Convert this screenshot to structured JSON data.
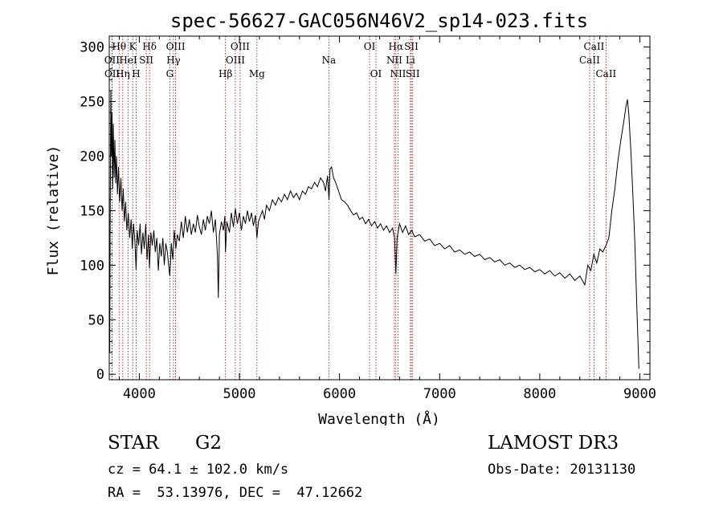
{
  "chart_data": {
    "type": "line",
    "title": "spec-56627-GAC056N46V2_sp14-023.fits",
    "xlabel": "Wavelength (Å)",
    "ylabel": "Flux (relative)",
    "xlim": [
      3700,
      9100
    ],
    "ylim": [
      -5,
      310
    ],
    "xticks": [
      4000,
      5000,
      6000,
      7000,
      8000,
      9000
    ],
    "yticks": [
      0,
      50,
      100,
      150,
      200,
      250,
      300
    ],
    "grid": false,
    "spectral_lines": [
      {
        "label": "Hθ",
        "x": 3798,
        "row": 0
      },
      {
        "label": "OII",
        "x": 3727,
        "row": 1
      },
      {
        "label": "OII",
        "x": 3729,
        "row": 2
      },
      {
        "label": "K",
        "x": 3934,
        "row": 0
      },
      {
        "label": "HeI",
        "x": 3889,
        "row": 1
      },
      {
        "label": "Hη",
        "x": 3835,
        "row": 2
      },
      {
        "label": "SII",
        "x": 4070,
        "row": 1
      },
      {
        "label": "H",
        "x": 3969,
        "row": 2
      },
      {
        "label": "Hδ",
        "x": 4102,
        "row": 0
      },
      {
        "label": "OIII",
        "x": 4363,
        "row": 0
      },
      {
        "label": "Hγ",
        "x": 4341,
        "row": 1
      },
      {
        "label": "G",
        "x": 4305,
        "row": 2
      },
      {
        "label": "OIII",
        "x": 5007,
        "row": 0
      },
      {
        "label": "OIII",
        "x": 4959,
        "row": 1
      },
      {
        "label": "Hβ",
        "x": 4861,
        "row": 2
      },
      {
        "label": "Mg",
        "x": 5175,
        "row": 2
      },
      {
        "label": "Na",
        "x": 5893,
        "row": 1
      },
      {
        "label": "OI",
        "x": 6300,
        "row": 0
      },
      {
        "label": "OI",
        "x": 6364,
        "row": 2
      },
      {
        "label": "Hα",
        "x": 6563,
        "row": 0
      },
      {
        "label": "NII",
        "x": 6548,
        "row": 1
      },
      {
        "label": "NII",
        "x": 6584,
        "row": 2
      },
      {
        "label": "SII",
        "x": 6717,
        "row": 0
      },
      {
        "label": "Li",
        "x": 6708,
        "row": 1
      },
      {
        "label": "SII",
        "x": 6731,
        "row": 2
      },
      {
        "label": "CaII",
        "x": 8542,
        "row": 0
      },
      {
        "label": "CaII",
        "x": 8498,
        "row": 1
      },
      {
        "label": "CaII",
        "x": 8662,
        "row": 2
      }
    ],
    "series": [
      {
        "points": [
          [
            3700,
            75
          ],
          [
            3705,
            20
          ],
          [
            3710,
            150
          ],
          [
            3716,
            260
          ],
          [
            3722,
            200
          ],
          [
            3728,
            240
          ],
          [
            3734,
            170
          ],
          [
            3740,
            230
          ],
          [
            3748,
            180
          ],
          [
            3756,
            215
          ],
          [
            3764,
            175
          ],
          [
            3772,
            200
          ],
          [
            3782,
            165
          ],
          [
            3792,
            190
          ],
          [
            3804,
            158
          ],
          [
            3816,
            180
          ],
          [
            3828,
            150
          ],
          [
            3840,
            170
          ],
          [
            3852,
            140
          ],
          [
            3864,
            158
          ],
          [
            3876,
            132
          ],
          [
            3890,
            148
          ],
          [
            3904,
            125
          ],
          [
            3918,
            142
          ],
          [
            3930,
            115
          ],
          [
            3942,
            138
          ],
          [
            3956,
            122
          ],
          [
            3968,
            96
          ],
          [
            3980,
            132
          ],
          [
            3994,
            118
          ],
          [
            4008,
            138
          ],
          [
            4022,
            110
          ],
          [
            4036,
            130
          ],
          [
            4050,
            115
          ],
          [
            4064,
            138
          ],
          [
            4078,
            105
          ],
          [
            4092,
            128
          ],
          [
            4102,
            97
          ],
          [
            4116,
            130
          ],
          [
            4130,
            118
          ],
          [
            4145,
            132
          ],
          [
            4160,
            112
          ],
          [
            4175,
            125
          ],
          [
            4190,
            95
          ],
          [
            4205,
            120
          ],
          [
            4220,
            108
          ],
          [
            4235,
            125
          ],
          [
            4250,
            100
          ],
          [
            4265,
            120
          ],
          [
            4280,
            112
          ],
          [
            4295,
            98
          ],
          [
            4305,
            90
          ],
          [
            4320,
            120
          ],
          [
            4335,
            105
          ],
          [
            4350,
            132
          ],
          [
            4365,
            115
          ],
          [
            4380,
            128
          ],
          [
            4400,
            122
          ],
          [
            4420,
            140
          ],
          [
            4440,
            125
          ],
          [
            4460,
            145
          ],
          [
            4480,
            130
          ],
          [
            4500,
            142
          ],
          [
            4520,
            128
          ],
          [
            4540,
            138
          ],
          [
            4560,
            130
          ],
          [
            4580,
            146
          ],
          [
            4600,
            135
          ],
          [
            4620,
            128
          ],
          [
            4640,
            142
          ],
          [
            4660,
            132
          ],
          [
            4680,
            145
          ],
          [
            4700,
            138
          ],
          [
            4720,
            150
          ],
          [
            4740,
            130
          ],
          [
            4760,
            142
          ],
          [
            4780,
            110
          ],
          [
            4790,
            70
          ],
          [
            4800,
            128
          ],
          [
            4820,
            140
          ],
          [
            4840,
            132
          ],
          [
            4855,
            145
          ],
          [
            4861,
            112
          ],
          [
            4875,
            140
          ],
          [
            4900,
            130
          ],
          [
            4920,
            148
          ],
          [
            4940,
            135
          ],
          [
            4960,
            152
          ],
          [
            4980,
            138
          ],
          [
            5000,
            148
          ],
          [
            5020,
            132
          ],
          [
            5040,
            145
          ],
          [
            5060,
            138
          ],
          [
            5080,
            150
          ],
          [
            5100,
            140
          ],
          [
            5120,
            148
          ],
          [
            5140,
            136
          ],
          [
            5160,
            146
          ],
          [
            5175,
            125
          ],
          [
            5190,
            140
          ],
          [
            5210,
            145
          ],
          [
            5230,
            150
          ],
          [
            5250,
            142
          ],
          [
            5270,
            155
          ],
          [
            5300,
            150
          ],
          [
            5330,
            160
          ],
          [
            5360,
            155
          ],
          [
            5390,
            162
          ],
          [
            5420,
            158
          ],
          [
            5450,
            165
          ],
          [
            5480,
            160
          ],
          [
            5510,
            168
          ],
          [
            5540,
            162
          ],
          [
            5570,
            166
          ],
          [
            5600,
            160
          ],
          [
            5630,
            168
          ],
          [
            5660,
            165
          ],
          [
            5690,
            172
          ],
          [
            5720,
            170
          ],
          [
            5750,
            176
          ],
          [
            5780,
            172
          ],
          [
            5810,
            180
          ],
          [
            5840,
            176
          ],
          [
            5860,
            168
          ],
          [
            5880,
            182
          ],
          [
            5895,
            160
          ],
          [
            5905,
            188
          ],
          [
            5920,
            190
          ],
          [
            5940,
            180
          ],
          [
            5960,
            176
          ],
          [
            5990,
            168
          ],
          [
            6020,
            160
          ],
          [
            6050,
            158
          ],
          [
            6080,
            155
          ],
          [
            6110,
            150
          ],
          [
            6140,
            146
          ],
          [
            6170,
            148
          ],
          [
            6200,
            142
          ],
          [
            6230,
            144
          ],
          [
            6260,
            138
          ],
          [
            6290,
            142
          ],
          [
            6320,
            136
          ],
          [
            6350,
            140
          ],
          [
            6380,
            134
          ],
          [
            6410,
            138
          ],
          [
            6440,
            132
          ],
          [
            6470,
            136
          ],
          [
            6500,
            130
          ],
          [
            6530,
            134
          ],
          [
            6550,
            125
          ],
          [
            6563,
            92
          ],
          [
            6575,
            125
          ],
          [
            6600,
            138
          ],
          [
            6630,
            130
          ],
          [
            6660,
            136
          ],
          [
            6690,
            128
          ],
          [
            6720,
            132
          ],
          [
            6750,
            126
          ],
          [
            6800,
            128
          ],
          [
            6850,
            122
          ],
          [
            6900,
            124
          ],
          [
            6950,
            118
          ],
          [
            7000,
            120
          ],
          [
            7050,
            115
          ],
          [
            7100,
            118
          ],
          [
            7150,
            112
          ],
          [
            7200,
            114
          ],
          [
            7250,
            110
          ],
          [
            7300,
            112
          ],
          [
            7350,
            108
          ],
          [
            7400,
            110
          ],
          [
            7450,
            105
          ],
          [
            7500,
            107
          ],
          [
            7550,
            103
          ],
          [
            7600,
            105
          ],
          [
            7650,
            100
          ],
          [
            7700,
            102
          ],
          [
            7750,
            98
          ],
          [
            7800,
            100
          ],
          [
            7850,
            96
          ],
          [
            7900,
            98
          ],
          [
            7950,
            94
          ],
          [
            8000,
            96
          ],
          [
            8050,
            92
          ],
          [
            8100,
            95
          ],
          [
            8150,
            90
          ],
          [
            8200,
            93
          ],
          [
            8250,
            88
          ],
          [
            8300,
            92
          ],
          [
            8350,
            86
          ],
          [
            8400,
            90
          ],
          [
            8450,
            82
          ],
          [
            8480,
            100
          ],
          [
            8510,
            95
          ],
          [
            8540,
            110
          ],
          [
            8570,
            102
          ],
          [
            8600,
            115
          ],
          [
            8630,
            112
          ],
          [
            8660,
            118
          ],
          [
            8690,
            125
          ],
          [
            8720,
            150
          ],
          [
            8750,
            170
          ],
          [
            8780,
            195
          ],
          [
            8810,
            215
          ],
          [
            8840,
            232
          ],
          [
            8860,
            245
          ],
          [
            8875,
            252
          ],
          [
            8890,
            238
          ],
          [
            8910,
            205
          ],
          [
            8930,
            165
          ],
          [
            8950,
            120
          ],
          [
            8970,
            60
          ],
          [
            8990,
            5
          ]
        ]
      }
    ]
  },
  "info": {
    "object_type": "STAR",
    "subclass": "G2",
    "survey": "LAMOST DR3",
    "redshift": "cz = 64.1 ± 102.0 km/s",
    "obs_date": "Obs-Date: 20131130",
    "coords": "RA =  53.13976, DEC =  47.12662"
  }
}
